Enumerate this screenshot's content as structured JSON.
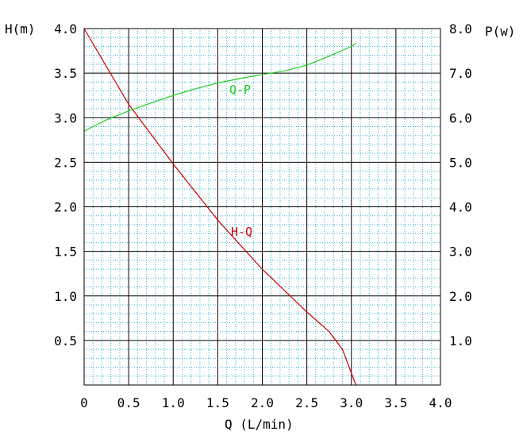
{
  "chart_data": {
    "type": "line",
    "xlabel": "Q (L/min)",
    "ylabel_left": "H(m)",
    "ylabel_right": "P(w)",
    "xlim": [
      0,
      4.0
    ],
    "ylim_left": [
      0,
      4.0
    ],
    "ylim_right": [
      0,
      8.0
    ],
    "grid": true,
    "minor_grid": true,
    "x_ticks": [
      {
        "value": 0,
        "label": "0"
      },
      {
        "value": 0.5,
        "label": "0.5"
      },
      {
        "value": 1.0,
        "label": "1.0"
      },
      {
        "value": 1.5,
        "label": "1.5"
      },
      {
        "value": 2.0,
        "label": "2.0"
      },
      {
        "value": 2.5,
        "label": "2.5"
      },
      {
        "value": 3.0,
        "label": "3.0"
      },
      {
        "value": 3.5,
        "label": "3.5"
      },
      {
        "value": 4.0,
        "label": "4.0"
      }
    ],
    "y_left_ticks": [
      {
        "value": 0.5,
        "label": "0.5"
      },
      {
        "value": 1.0,
        "label": "1.0"
      },
      {
        "value": 1.5,
        "label": "1.5"
      },
      {
        "value": 2.0,
        "label": "2.0"
      },
      {
        "value": 2.5,
        "label": "2.5"
      },
      {
        "value": 3.0,
        "label": "3.0"
      },
      {
        "value": 3.5,
        "label": "3.5"
      },
      {
        "value": 4.0,
        "label": "4.0"
      }
    ],
    "y_right_ticks": [
      {
        "value": 1.0,
        "label": "1.0"
      },
      {
        "value": 2.0,
        "label": "2.0"
      },
      {
        "value": 3.0,
        "label": "3.0"
      },
      {
        "value": 4.0,
        "label": "4.0"
      },
      {
        "value": 5.0,
        "label": "5.0"
      },
      {
        "value": 6.0,
        "label": "6.0"
      },
      {
        "value": 7.0,
        "label": "7.0"
      },
      {
        "value": 8.0,
        "label": "8.0"
      }
    ],
    "series": [
      {
        "name": "H-Q",
        "axis": "left",
        "color": "#cc0000",
        "x": [
          0,
          0.5,
          1.0,
          1.5,
          2.0,
          2.5,
          2.75,
          2.9,
          3.05
        ],
        "y": [
          4.0,
          3.15,
          2.48,
          1.85,
          1.3,
          0.82,
          0.6,
          0.4,
          0.0
        ]
      },
      {
        "name": "Q-P",
        "axis": "right",
        "color": "#22cc22",
        "x": [
          0,
          0.25,
          0.5,
          0.75,
          1.0,
          1.25,
          1.5,
          1.75,
          2.0,
          2.25,
          2.5,
          2.75,
          3.0,
          3.05
        ],
        "y": [
          5.7,
          5.95,
          6.15,
          6.33,
          6.5,
          6.65,
          6.78,
          6.88,
          6.97,
          7.05,
          7.18,
          7.38,
          7.6,
          7.67
        ]
      }
    ],
    "series_labels": [
      {
        "text": "Q-P",
        "color": "#22cc22"
      },
      {
        "text": "H-Q",
        "color": "#cc0000"
      }
    ]
  }
}
